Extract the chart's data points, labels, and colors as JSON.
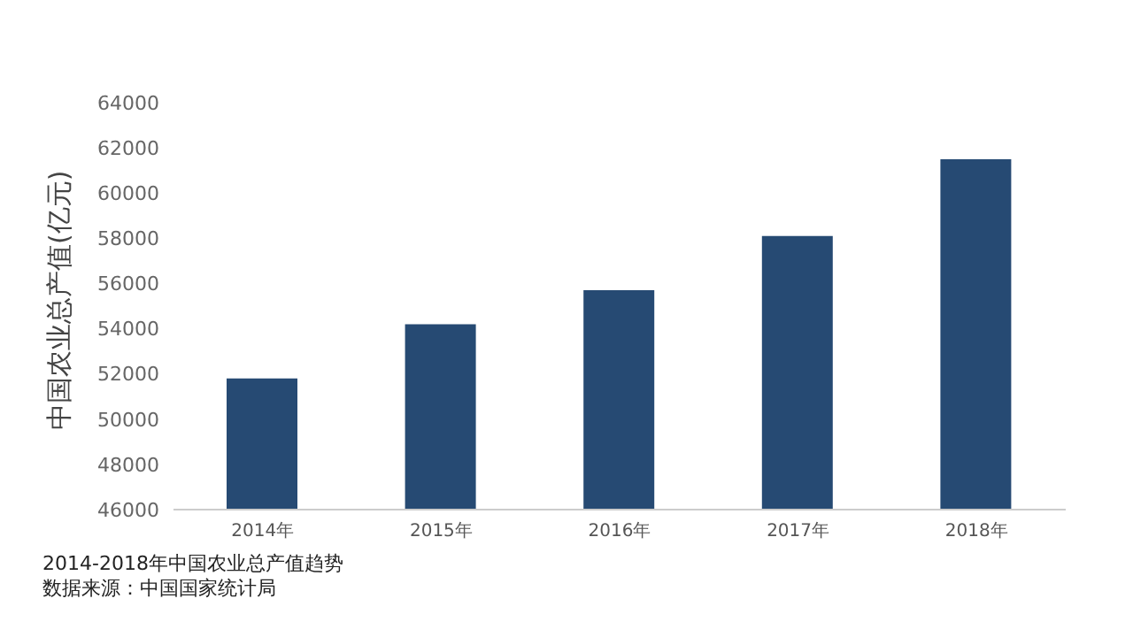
{
  "chart_data": {
    "type": "bar",
    "title": "2014-2018年中国农业总产值趋势",
    "ylabel": "中国农业总产值(亿元)",
    "annotations": [
      "数据来源：中国国家统计局"
    ],
    "categories": [
      "2014年",
      "2015年",
      "2016年",
      "2017年",
      "2018年"
    ],
    "values": [
      51800,
      54200,
      55700,
      58100,
      61500
    ],
    "color": "#264a73",
    "ylim": [
      46000,
      64000
    ],
    "yticks": [
      46000,
      48000,
      50000,
      52000,
      54000,
      56000,
      58000,
      60000,
      62000,
      64000
    ],
    "grid": false,
    "legend": false
  }
}
